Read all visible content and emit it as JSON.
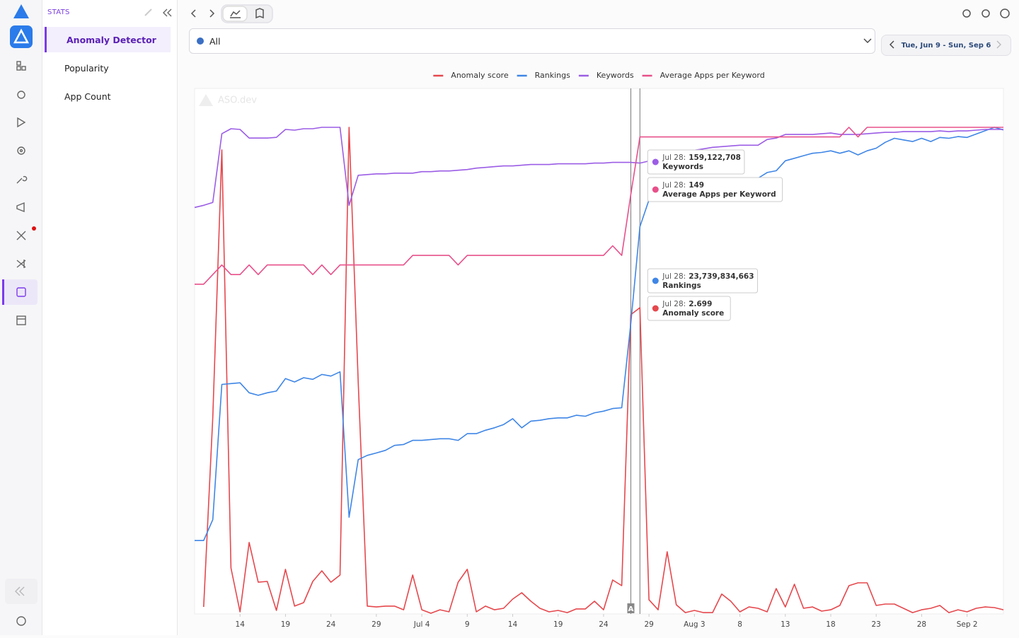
{
  "app": {
    "section": "STATS",
    "nav": [
      "Anomaly Detector",
      "Popularity",
      "App Count"
    ],
    "filter": "All",
    "date_range": "Tue, Jun 9 - Sun, Sep 6",
    "watermark": "ASO.dev"
  },
  "chart_data": {
    "type": "line",
    "categories": [
      "Jun 9",
      "Jun 10",
      "Jun 11",
      "Jun 12",
      "Jun 13",
      "Jun 14",
      "Jun 15",
      "Jun 16",
      "Jun 17",
      "Jun 18",
      "Jun 19",
      "Jun 20",
      "Jun 21",
      "Jun 22",
      "Jun 23",
      "Jun 24",
      "Jun 25",
      "Jun 26",
      "Jun 27",
      "Jun 28",
      "Jun 29",
      "Jun 30",
      "Jul 1",
      "Jul 2",
      "Jul 3",
      "Jul 4",
      "Jul 5",
      "Jul 6",
      "Jul 7",
      "Jul 8",
      "Jul 9",
      "Jul 10",
      "Jul 11",
      "Jul 12",
      "Jul 13",
      "Jul 14",
      "Jul 15",
      "Jul 16",
      "Jul 17",
      "Jul 18",
      "Jul 19",
      "Jul 20",
      "Jul 21",
      "Jul 22",
      "Jul 23",
      "Jul 24",
      "Jul 25",
      "Jul 26",
      "Jul 27",
      "Jul 28",
      "Jul 29",
      "Jul 30",
      "Jul 31",
      "Aug 1",
      "Aug 2",
      "Aug 3",
      "Aug 4",
      "Aug 5",
      "Aug 6",
      "Aug 7",
      "Aug 8",
      "Aug 9",
      "Aug 10",
      "Aug 11",
      "Aug 12",
      "Aug 13",
      "Aug 14",
      "Aug 15",
      "Aug 16",
      "Aug 17",
      "Aug 18",
      "Aug 19",
      "Aug 20",
      "Aug 21",
      "Aug 22",
      "Aug 23",
      "Aug 24",
      "Aug 25",
      "Aug 26",
      "Aug 27",
      "Aug 28",
      "Aug 29",
      "Aug 30",
      "Aug 31",
      "Sep 1",
      "Sep 2",
      "Sep 3",
      "Sep 4",
      "Sep 5",
      "Sep 6"
    ],
    "series": [
      {
        "name": "Anomaly score",
        "color": "#e5484d",
        "values": [
          null,
          0.062,
          1.733,
          4.089,
          0.405,
          0.019,
          0.63,
          0.28,
          0.287,
          0.031,
          0.393,
          0.069,
          0.1,
          0.287,
          0.38,
          0.28,
          0.343,
          4.288,
          2.044,
          0.069,
          0.062,
          0.069,
          0.069,
          0.037,
          0.343,
          0.037,
          0.006,
          0.037,
          0.019,
          0.28,
          0.393,
          0.019,
          0.069,
          0.037,
          0.05,
          0.131,
          0.187,
          0.112,
          0.05,
          0.019,
          0.031,
          0.012,
          0.044,
          0.044,
          0.112,
          0.037,
          0.299,
          0.249,
          2.637,
          2.699,
          0.125,
          0.037,
          0.548,
          0.081,
          0.012,
          0.031,
          0.012,
          0.012,
          0.175,
          0.112,
          0.019,
          0.062,
          0.05,
          0.019,
          0.224,
          0.062,
          0.262,
          0.05,
          0.062,
          0.025,
          0.037,
          0.075,
          0.249,
          0.274,
          0.274,
          0.075,
          0.087,
          0.087,
          0.05,
          0.012,
          0.037,
          0.05,
          0.075,
          0.012,
          0.037,
          0.019,
          0.05,
          0.062,
          0.056,
          0.037
        ]
      },
      {
        "name": "Rankings",
        "color": "#3f86e6",
        "values": [
          4500000000,
          4500000000,
          5780000000,
          14070000000,
          14120000000,
          14170000000,
          13560000000,
          13400000000,
          13560000000,
          13660000000,
          14430000000,
          14220000000,
          14480000000,
          14380000000,
          14680000000,
          14580000000,
          14840000000,
          5930000000,
          9460000000,
          9720000000,
          9870000000,
          10030000000,
          10330000000,
          10390000000,
          10640000000,
          10640000000,
          10690000000,
          10740000000,
          10740000000,
          10640000000,
          11050000000,
          11050000000,
          11260000000,
          11410000000,
          11610000000,
          11970000000,
          11410000000,
          11820000000,
          11870000000,
          11970000000,
          12020000000,
          12020000000,
          12180000000,
          12120000000,
          12330000000,
          12430000000,
          12590000000,
          12640000000,
          17800000000,
          23739834663,
          25380000000,
          25480000000,
          25580000000,
          25580000000,
          25630000000,
          25680000000,
          25730000000,
          25990000000,
          26400000000,
          26400000000,
          26500000000,
          26650000000,
          26710000000,
          27060000000,
          27170000000,
          27780000000,
          27930000000,
          28090000000,
          28240000000,
          28290000000,
          28390000000,
          28240000000,
          28390000000,
          28140000000,
          28390000000,
          28550000000,
          28910000000,
          29160000000,
          29060000000,
          28960000000,
          29160000000,
          28960000000,
          29210000000,
          29160000000,
          29260000000,
          29210000000,
          29420000000,
          29620000000,
          29830000000,
          29670000000
        ]
      },
      {
        "name": "Keywords",
        "color": "#9b5de5",
        "values": [
          143463000,
          144221000,
          145231000,
          169478000,
          171247000,
          170994000,
          167963000,
          167963000,
          167963000,
          168216000,
          170994000,
          170741000,
          171247000,
          171247000,
          171752000,
          171752000,
          171752000,
          144221000,
          154829000,
          155082000,
          155334000,
          155334000,
          155587000,
          155587000,
          155587000,
          156092000,
          156092000,
          156345000,
          156345000,
          156597000,
          156850000,
          157355000,
          157607000,
          157860000,
          158113000,
          158113000,
          158365000,
          158618000,
          158618000,
          158618000,
          158870000,
          158870000,
          158870000,
          158870000,
          159123000,
          159123000,
          159375000,
          159375000,
          159375000,
          159122708,
          159881000,
          160638000,
          161396000,
          162154000,
          162912000,
          163669000,
          164174000,
          164680000,
          164932000,
          165185000,
          165437000,
          165437000,
          165437000,
          167458000,
          167963000,
          169226000,
          169226000,
          169226000,
          169226000,
          169478000,
          169731000,
          169226000,
          169226000,
          169226000,
          169478000,
          169731000,
          169984000,
          169984000,
          170236000,
          170236000,
          170236000,
          170236000,
          170489000,
          170236000,
          170489000,
          170489000,
          170741000,
          170994000,
          170994000,
          170994000
        ]
      },
      {
        "name": "Average Apps per Keyword",
        "color": "#e8508a",
        "values": [
          103,
          103,
          106,
          109,
          106,
          106,
          109,
          106,
          109,
          109,
          109,
          109,
          109,
          106,
          109,
          106,
          109,
          109,
          109,
          109,
          109,
          109,
          109,
          109,
          112,
          112,
          112,
          112,
          112,
          109,
          112,
          112,
          112,
          112,
          112,
          112,
          112,
          112,
          112,
          112,
          112,
          112,
          112,
          112,
          112,
          112,
          115,
          112,
          131,
          149,
          149,
          149,
          149,
          149,
          149,
          149,
          149,
          149,
          149,
          149,
          149,
          149,
          149,
          149,
          149,
          149,
          149,
          149,
          149,
          149,
          149,
          149,
          152,
          149,
          152,
          152,
          152,
          152,
          152,
          152,
          152,
          152,
          152,
          152,
          152,
          152,
          152,
          152,
          152,
          152
        ]
      }
    ],
    "xticks": [
      {
        "value": "Jun 14",
        "label": "14"
      },
      {
        "value": "Jun 19",
        "label": "19"
      },
      {
        "value": "Jun 24",
        "label": "24"
      },
      {
        "value": "Jun 29",
        "label": "29"
      },
      "Jul 4",
      {
        "value": "Jul 9",
        "label": "9"
      },
      {
        "value": "Jul 14",
        "label": "14"
      },
      {
        "value": "Jul 19",
        "label": "19"
      },
      {
        "value": "Jul 24",
        "label": "24"
      },
      {
        "value": "Jul 29",
        "label": "29"
      },
      "Aug 3",
      {
        "value": "Aug 8",
        "label": "8"
      },
      {
        "value": "Aug 13",
        "label": "13"
      },
      {
        "value": "Aug 18",
        "label": "18"
      },
      {
        "value": "Aug 23",
        "label": "23"
      },
      {
        "value": "Aug 28",
        "label": "28"
      },
      "Sep 2"
    ],
    "annotation": {
      "at": "Jul 27",
      "label": "A"
    },
    "tooltip": {
      "at": "Jul 28",
      "items": [
        {
          "date": "Jul 28:",
          "value": "159,122,708",
          "name": "Keywords"
        },
        {
          "date": "Jul 28:",
          "value": "149",
          "name": "Average Apps per Keyword"
        },
        {
          "date": "Jul 28:",
          "value": "23,739,834,663",
          "name": "Rankings"
        },
        {
          "date": "Jul 28:",
          "value": "2.699",
          "name": "Anomaly score"
        }
      ]
    },
    "legend": "top"
  }
}
